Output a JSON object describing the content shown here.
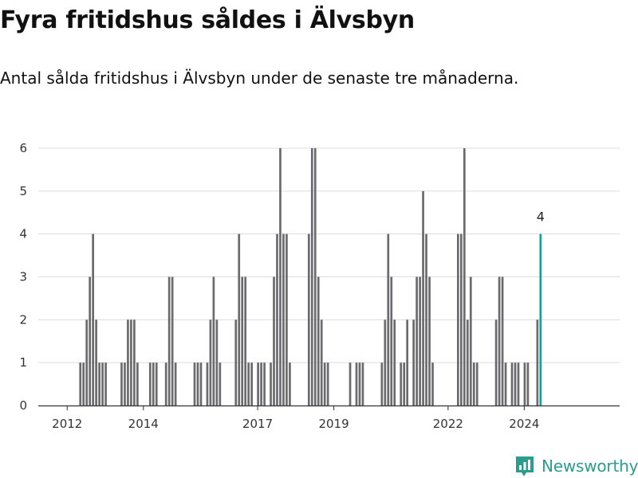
{
  "header": {
    "title": "Fyra fritidshus såldes i Älvsbyn",
    "subtitle": "Antal sålda fritidshus i Älvsbyn under de senaste tre månaderna."
  },
  "brand": {
    "name": "Newsworthy",
    "icon": "newsworthy-logo-icon",
    "color": "#2a9d8f"
  },
  "chart_data": {
    "type": "bar",
    "title": "Fyra fritidshus såldes i Älvsbyn",
    "subtitle": "Antal sålda fritidshus i Älvsbyn under de senaste tre månaderna.",
    "xlabel": "",
    "ylabel": "",
    "ylim": [
      0,
      6
    ],
    "yticks": [
      0,
      1,
      2,
      3,
      4,
      5,
      6
    ],
    "xticks": [
      "2012",
      "2014",
      "2017",
      "2019",
      "2022",
      "2024"
    ],
    "grid": true,
    "bar_color": "#6b6b6f",
    "highlight_color": "#1a9e93",
    "highlight_label": "4",
    "values": [
      0,
      0,
      0,
      0,
      0,
      0,
      1,
      1,
      2,
      3,
      4,
      2,
      1,
      1,
      1,
      0,
      0,
      0,
      0,
      1,
      1,
      2,
      2,
      2,
      1,
      0,
      0,
      0,
      1,
      1,
      1,
      0,
      0,
      1,
      3,
      3,
      1,
      0,
      0,
      0,
      0,
      0,
      1,
      1,
      1,
      0,
      1,
      2,
      3,
      2,
      1,
      0,
      0,
      0,
      0,
      2,
      4,
      3,
      3,
      1,
      1,
      0,
      1,
      1,
      1,
      0,
      1,
      3,
      4,
      6,
      4,
      4,
      1,
      0,
      0,
      0,
      0,
      0,
      4,
      6,
      6,
      3,
      2,
      1,
      1,
      0,
      0,
      0,
      0,
      0,
      0,
      1,
      0,
      1,
      1,
      1,
      0,
      0,
      0,
      0,
      0,
      1,
      2,
      4,
      3,
      2,
      0,
      1,
      1,
      2,
      0,
      2,
      3,
      3,
      5,
      4,
      3,
      1,
      0,
      0,
      0,
      0,
      0,
      0,
      0,
      4,
      4,
      6,
      2,
      3,
      1,
      1,
      0,
      0,
      0,
      0,
      0,
      2,
      3,
      3,
      1,
      0,
      1,
      1,
      1,
      0,
      1,
      1,
      0,
      0,
      2,
      4
    ]
  }
}
